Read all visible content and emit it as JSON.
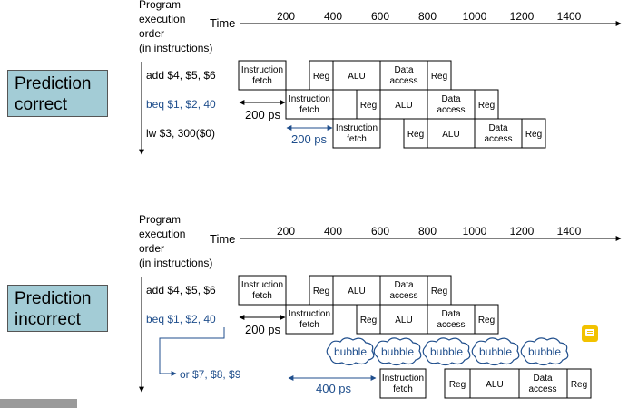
{
  "panels": [
    {
      "prediction": [
        "Prediction",
        "correct"
      ],
      "header": [
        "Program",
        "execution",
        "order",
        "(in instructions)"
      ],
      "time_label": "Time",
      "ticks": [
        "200",
        "400",
        "600",
        "800",
        "1000",
        "1200",
        "1400"
      ],
      "instructions": [
        "add $4, $5, $6",
        "beq $1, $2, 40",
        "lw  $3, 300($0)"
      ],
      "gap_labels": [
        "200 ps",
        "200 ps"
      ],
      "bubbles": []
    },
    {
      "prediction": [
        "Prediction",
        "incorrect"
      ],
      "header": [
        "Program",
        "execution",
        "order",
        "(in instructions)"
      ],
      "time_label": "Time",
      "ticks": [
        "200",
        "400",
        "600",
        "800",
        "1000",
        "1200",
        "1400"
      ],
      "instructions": [
        "add $4, $5, $6",
        "beq $1, $2, 40",
        "or $7, $8, $9"
      ],
      "gap_labels": [
        "200 ps",
        "400 ps"
      ],
      "bubbles": [
        "bubble",
        "bubble",
        "bubble",
        "bubble",
        "bubble"
      ]
    }
  ],
  "stages": {
    "fetch": [
      "Instruction",
      "fetch"
    ],
    "reg": "Reg",
    "alu": "ALU",
    "mem": [
      "Data",
      "access"
    ]
  },
  "colors": {
    "branch_text": "#1f4e8c",
    "prediction_box": "#a3ccd6",
    "bubble": "#1f4e8c"
  }
}
